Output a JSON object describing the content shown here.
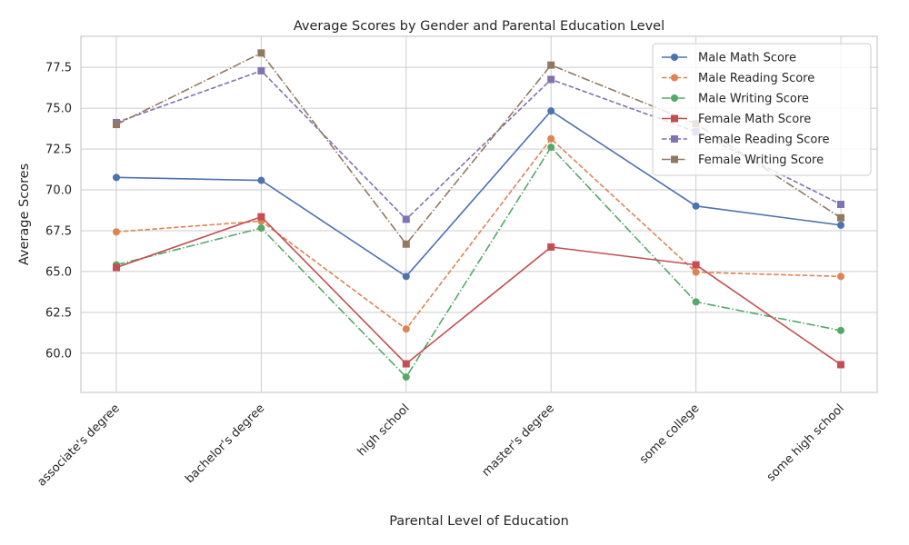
{
  "chart_data": {
    "type": "line",
    "title": "Average Scores by Gender and Parental Education Level",
    "xlabel": "Parental Level of Education",
    "ylabel": "Average Scores",
    "categories": [
      "associate's degree",
      "bachelor's degree",
      "high school",
      "master's degree",
      "some college",
      "some high school"
    ],
    "ylim": [
      57.6,
      79.4
    ],
    "yticks": [
      "60.0",
      "62.5",
      "65.0",
      "67.5",
      "70.0",
      "72.5",
      "75.0",
      "77.5"
    ],
    "ytick_values": [
      60.0,
      62.5,
      65.0,
      67.5,
      70.0,
      72.5,
      75.0,
      77.5
    ],
    "grid": true,
    "legend_position": "top-right",
    "series": [
      {
        "name": "Male Math Score",
        "values": [
          70.76,
          70.58,
          64.7,
          74.83,
          69.01,
          67.84
        ],
        "color": "#4c72b0",
        "dash": "solid",
        "marker": "circle"
      },
      {
        "name": "Male Reading Score",
        "values": [
          67.43,
          68.09,
          61.48,
          73.13,
          64.96,
          64.7
        ],
        "color": "#dd8452",
        "dash": "dashed",
        "marker": "circle"
      },
      {
        "name": "Male Writing Score",
        "values": [
          65.41,
          67.66,
          58.54,
          72.61,
          63.14,
          61.39
        ],
        "color": "#55a868",
        "dash": "dashdot",
        "marker": "circle"
      },
      {
        "name": "Female Math Score",
        "values": [
          65.25,
          68.35,
          59.35,
          66.5,
          65.41,
          59.3
        ],
        "color": "#c44e52",
        "dash": "solid",
        "marker": "square"
      },
      {
        "name": "Female Reading Score",
        "values": [
          74.12,
          77.29,
          68.2,
          76.76,
          73.55,
          69.11
        ],
        "color": "#8172b3",
        "dash": "dashed",
        "marker": "square"
      },
      {
        "name": "Female Writing Score",
        "values": [
          74.0,
          78.38,
          66.68,
          77.64,
          74.05,
          68.29
        ],
        "color": "#937860",
        "dash": "dashdot",
        "marker": "square"
      }
    ]
  }
}
